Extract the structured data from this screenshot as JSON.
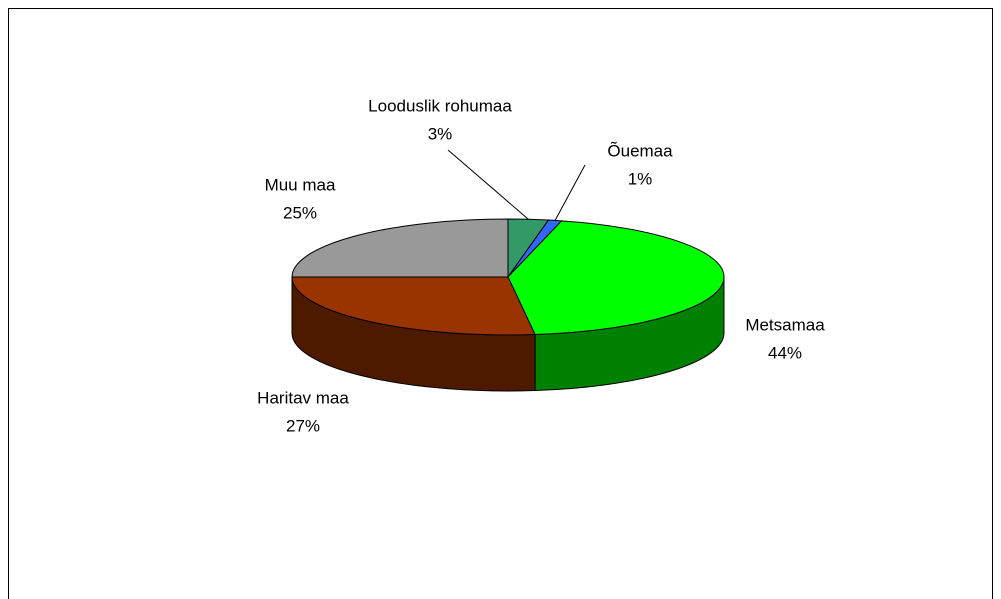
{
  "chart_data": {
    "type": "pie3d",
    "categories": [
      "Looduslik rohumaa",
      "Õuemaa",
      "Metsamaa",
      "Haritav maa",
      "Muu maa"
    ],
    "values": [
      3,
      1,
      44,
      27,
      25
    ],
    "value_labels": [
      "3%",
      "1%",
      "44%",
      "27%",
      "25%"
    ],
    "colors": [
      "#339966",
      "#3366ff",
      "#00ff00",
      "#993300",
      "#999999"
    ]
  }
}
